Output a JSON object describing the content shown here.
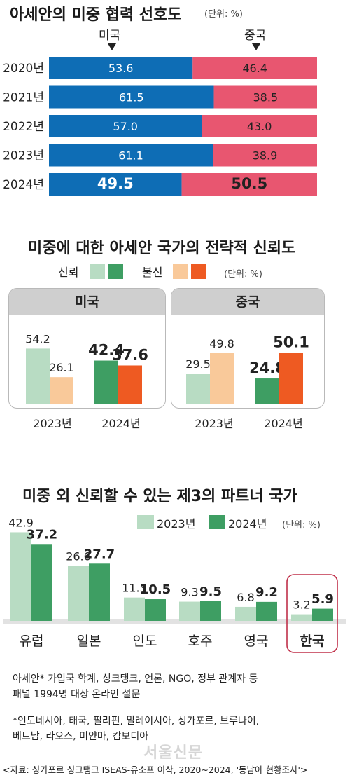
{
  "colors": {
    "usa": "#0e6db5",
    "china": "#e85670",
    "trust_2023": "#b8dcc3",
    "trust_2024": "#3e9e63",
    "distrust_2023": "#f9c99a",
    "distrust_2024": "#ee5a22"
  },
  "section1": {
    "title": "아세안의 미중 협력 선호도",
    "unit": "(단위: %)",
    "label_usa": "미국",
    "label_china": "중국"
  },
  "section2": {
    "title": "미중에 대한 아세안 국가의 전략적 신뢰도",
    "legend_trust": "신뢰",
    "legend_distrust": "불신",
    "unit": "(단위: %)",
    "panel_usa": "미국",
    "panel_china": "중국"
  },
  "section3": {
    "title": "미중 외 신뢰할 수 있는 제3의 파트너 국가",
    "legend_2023": "2023년",
    "legend_2024": "2024년",
    "unit": "(단위: %)"
  },
  "notes": {
    "line1": "아세안* 가입국 학계, 싱크탱크, 언론, NGO, 정부 관계자 등",
    "line2": "패널 1994명 대상 온라인 설문",
    "line3": "*인도네시아, 태국, 필리핀, 말레이시아, 싱가포르, 브루나이,",
    "line4": "베트남, 라오스, 미얀마, 캄보디아",
    "watermark": "서울신문",
    "source": "<자료: 싱가포르 싱크탱크 ISEAS-유소프 이샥, 2020~2024, '동남아 현황조사'>"
  },
  "chart_data": [
    {
      "type": "bar",
      "stacked": true,
      "orientation": "horizontal",
      "title": "아세안의 미중 협력 선호도",
      "categories": [
        "2020년",
        "2021년",
        "2022년",
        "2023년",
        "2024년"
      ],
      "series": [
        {
          "name": "미국",
          "values": [
            53.6,
            61.5,
            57.0,
            61.1,
            49.5
          ]
        },
        {
          "name": "중국",
          "values": [
            46.4,
            38.5,
            43.0,
            38.9,
            50.5
          ]
        }
      ],
      "xlim": [
        0,
        100
      ]
    },
    {
      "type": "bar",
      "title": "미국",
      "categories": [
        "2023년",
        "2024년"
      ],
      "series": [
        {
          "name": "신뢰",
          "values": [
            54.2,
            42.4
          ]
        },
        {
          "name": "불신",
          "values": [
            26.1,
            37.6
          ]
        }
      ],
      "ylim": [
        0,
        60
      ]
    },
    {
      "type": "bar",
      "title": "중국",
      "categories": [
        "2023년",
        "2024년"
      ],
      "series": [
        {
          "name": "신뢰",
          "values": [
            29.5,
            24.8
          ]
        },
        {
          "name": "불신",
          "values": [
            49.8,
            50.1
          ]
        }
      ],
      "ylim": [
        0,
        60
      ]
    },
    {
      "type": "bar",
      "title": "미중 외 신뢰할 수 있는 제3의 파트너 국가",
      "categories": [
        "유럽",
        "일본",
        "인도",
        "호주",
        "영국",
        "한국"
      ],
      "series": [
        {
          "name": "2023년",
          "values": [
            42.9,
            26.6,
            11.3,
            9.3,
            6.8,
            3.2
          ]
        },
        {
          "name": "2024년",
          "values": [
            37.2,
            27.7,
            10.5,
            9.5,
            9.2,
            5.9
          ]
        }
      ],
      "highlight": "한국",
      "ylim": [
        0,
        45
      ]
    }
  ]
}
